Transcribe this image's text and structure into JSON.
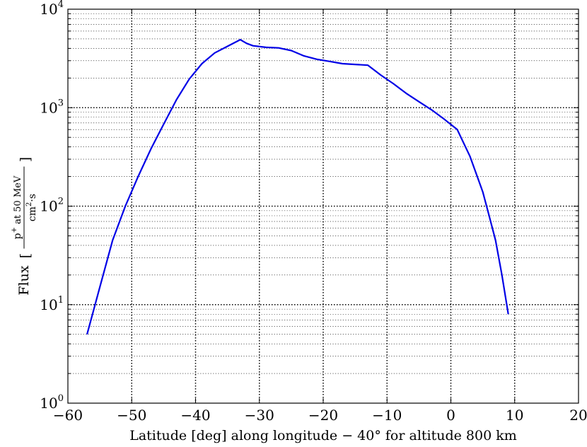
{
  "chart_data": {
    "type": "line",
    "title": "",
    "xlabel": "Latitude [deg] along longitude − 40° for altitude 800 km",
    "ylabel": {
      "main": "Flux",
      "numerator_prefix": "p",
      "numerator_sup": "+",
      "numerator_suffix": " at 50 MeV",
      "denominator_prefix": "cm",
      "denominator_sup": "2",
      "denominator_suffix": "·s"
    },
    "xlim": [
      -60,
      20
    ],
    "ylim": [
      1,
      10000
    ],
    "yscale": "log",
    "grid": true,
    "xticks": [
      -60,
      -50,
      -40,
      -30,
      -20,
      -10,
      0,
      10,
      20
    ],
    "xtick_labels": [
      "−60",
      "−50",
      "−40",
      "−30",
      "−20",
      "−10",
      "0",
      "10",
      "20"
    ],
    "ytick_labels": [
      {
        "base": "10",
        "exp": "0"
      },
      {
        "base": "10",
        "exp": "1"
      },
      {
        "base": "10",
        "exp": "2"
      },
      {
        "base": "10",
        "exp": "3"
      },
      {
        "base": "10",
        "exp": "4"
      }
    ],
    "line_color": "#0000e6",
    "series": [
      {
        "x": [
          -57,
          -55,
          -53,
          -51,
          -49,
          -47,
          -45,
          -43,
          -41,
          -39,
          -37,
          -35,
          -33,
          -32,
          -31,
          -29,
          -27,
          -25,
          -23,
          -21,
          -19,
          -17,
          -15,
          -13,
          -11,
          -9,
          -7,
          -5,
          -3,
          -1,
          1,
          3,
          5,
          6,
          7,
          8,
          9
        ],
        "y": [
          5,
          15,
          45,
          100,
          200,
          380,
          680,
          1200,
          1950,
          2800,
          3600,
          4200,
          4900,
          4500,
          4250,
          4100,
          4050,
          3800,
          3350,
          3100,
          2950,
          2800,
          2750,
          2700,
          2150,
          1750,
          1400,
          1150,
          950,
          760,
          600,
          320,
          140,
          80,
          45,
          20,
          8
        ]
      }
    ]
  }
}
